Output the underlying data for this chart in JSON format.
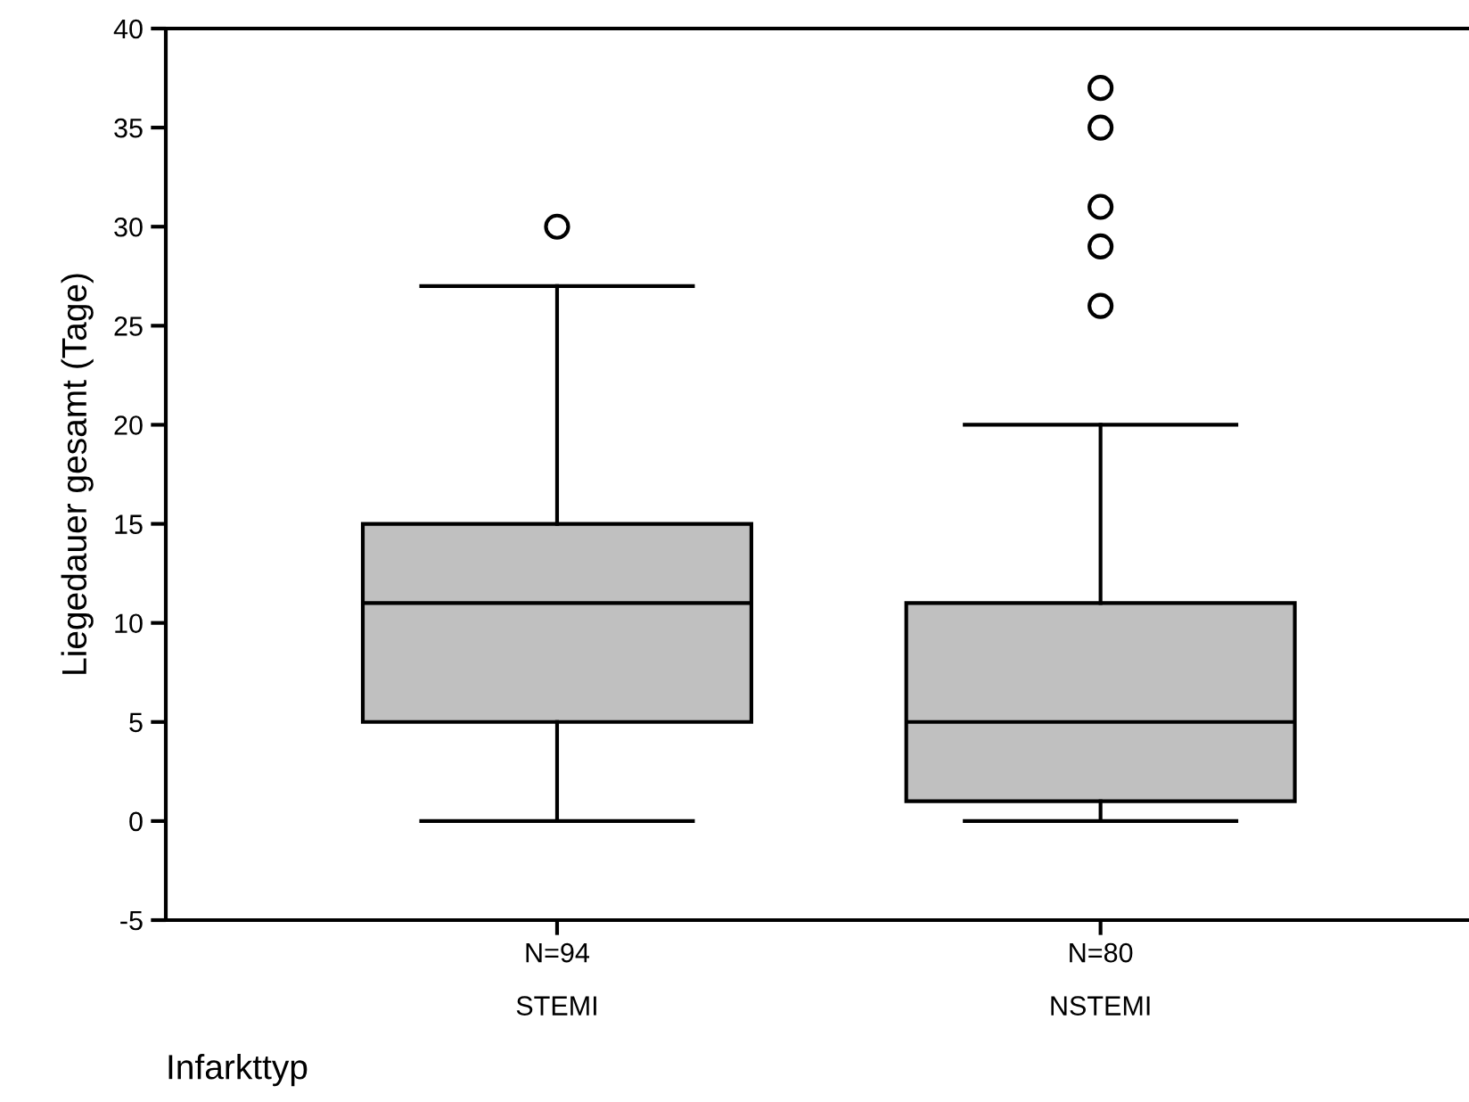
{
  "chart_data": {
    "type": "box",
    "ylabel": "Liegedauer gesamt (Tage)",
    "xlabel": "Infarkttyp",
    "categories": [
      "N=94\nSTEMI",
      "N=80\nNSTEMI"
    ],
    "boxes": [
      {
        "low": 0,
        "q1": 5,
        "median": 11,
        "q3": 15,
        "high": 27,
        "outliers": [
          30
        ]
      },
      {
        "low": 0,
        "q1": 1,
        "median": 5,
        "q3": 11,
        "high": 20,
        "outliers": [
          26,
          29,
          31,
          35,
          37
        ]
      }
    ],
    "color": "#c0c0c0",
    "ylim": [
      -5,
      40
    ],
    "yticks": [
      -5,
      0,
      5,
      10,
      15,
      20,
      25,
      30,
      35,
      40
    ],
    "grid": false,
    "legend": false
  }
}
